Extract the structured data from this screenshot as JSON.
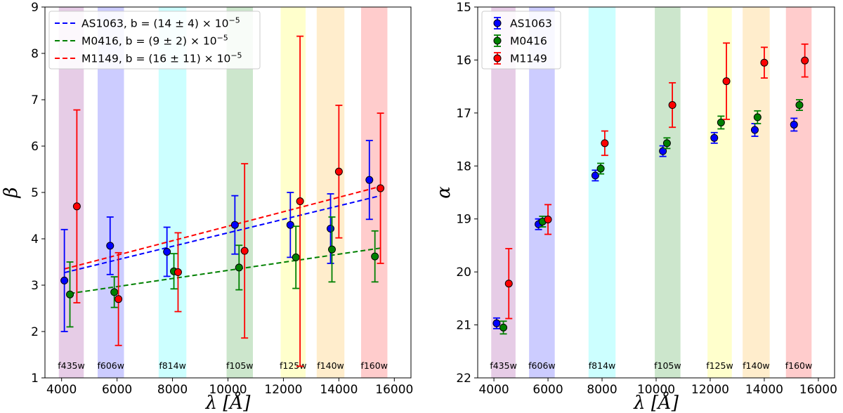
{
  "chart_data": [
    {
      "type": "scatter",
      "panel": "left",
      "xlabel": "λ [Å]",
      "ylabel": "β",
      "xlim": [
        3400,
        16600
      ],
      "ylim": [
        1,
        9
      ],
      "xticks": [
        4000,
        6000,
        8000,
        10000,
        12000,
        14000,
        16000
      ],
      "yticks": [
        1,
        2,
        3,
        4,
        5,
        6,
        7,
        8,
        9
      ],
      "y_inverted": false,
      "bands": [
        {
          "label": "f435w",
          "x0": 3900,
          "x1": 4800,
          "color": "#800080"
        },
        {
          "label": "f606w",
          "x0": 5300,
          "x1": 6250,
          "color": "#0000ff"
        },
        {
          "label": "f814w",
          "x0": 7500,
          "x1": 8500,
          "color": "#00ffff"
        },
        {
          "label": "f105w",
          "x0": 9950,
          "x1": 10900,
          "color": "#008000"
        },
        {
          "label": "f125w",
          "x0": 11900,
          "x1": 12800,
          "color": "#ffff00"
        },
        {
          "label": "f140w",
          "x0": 13200,
          "x1": 14200,
          "color": "#ffa500"
        },
        {
          "label": "f160w",
          "x0": 14800,
          "x1": 15750,
          "color": "#ff0000"
        }
      ],
      "series": [
        {
          "name": "AS1063",
          "legend": "AS1063, b = (14 ± 4) × 10⁻⁵",
          "color": "#0000ff",
          "x": [
            4100,
            5750,
            7800,
            10250,
            12250,
            13700,
            15100
          ],
          "y": [
            3.1,
            3.85,
            3.72,
            4.3,
            4.3,
            4.22,
            5.27
          ],
          "err": [
            1.1,
            0.62,
            0.53,
            0.63,
            0.7,
            0.75,
            0.85
          ],
          "fit": {
            "x": [
              4100,
              15500
            ],
            "y": [
              3.27,
              4.93
            ]
          }
        },
        {
          "name": "M0416",
          "legend": "M0416, b = (9 ± 2) × 10⁻⁵",
          "color": "#008000",
          "x": [
            4300,
            5900,
            8050,
            10400,
            12450,
            13750,
            15300
          ],
          "y": [
            2.8,
            2.85,
            3.3,
            3.38,
            3.6,
            3.77,
            3.62
          ],
          "err": [
            0.7,
            0.33,
            0.38,
            0.48,
            0.67,
            0.7,
            0.55
          ],
          "fit": {
            "x": [
              4300,
              15500
            ],
            "y": [
              2.82,
              3.8
            ]
          }
        },
        {
          "name": "M1149",
          "legend": "M1149, b = (16 ± 11) × 10⁻⁵",
          "color": "#ff0000",
          "x": [
            4550,
            6050,
            8200,
            10600,
            12600,
            14000,
            15500
          ],
          "y": [
            4.7,
            2.7,
            3.28,
            3.74,
            4.81,
            5.45,
            5.09
          ],
          "err": [
            2.08,
            1.0,
            0.85,
            1.88,
            3.56,
            1.43,
            1.62
          ],
          "fit": {
            "x": [
              4100,
              15500
            ],
            "y": [
              3.35,
              5.13
            ]
          }
        }
      ]
    },
    {
      "type": "scatter",
      "panel": "right",
      "xlabel": "λ [Å]",
      "ylabel": "α",
      "xlim": [
        3400,
        16600
      ],
      "ylim": [
        15,
        22
      ],
      "xticks": [
        4000,
        6000,
        8000,
        10000,
        12000,
        14000,
        16000
      ],
      "yticks": [
        15,
        16,
        17,
        18,
        19,
        20,
        21,
        22
      ],
      "y_inverted": true,
      "bands": [
        {
          "label": "f435w",
          "x0": 3900,
          "x1": 4800,
          "color": "#800080"
        },
        {
          "label": "f606w",
          "x0": 5300,
          "x1": 6250,
          "color": "#0000ff"
        },
        {
          "label": "f814w",
          "x0": 7500,
          "x1": 8500,
          "color": "#00ffff"
        },
        {
          "label": "f105w",
          "x0": 9950,
          "x1": 10900,
          "color": "#008000"
        },
        {
          "label": "f125w",
          "x0": 11900,
          "x1": 12800,
          "color": "#ffff00"
        },
        {
          "label": "f140w",
          "x0": 13200,
          "x1": 14200,
          "color": "#ffa500"
        },
        {
          "label": "f160w",
          "x0": 14800,
          "x1": 15750,
          "color": "#ff0000"
        }
      ],
      "series": [
        {
          "name": "AS1063",
          "legend": "AS1063",
          "color": "#0000ff",
          "x": [
            4100,
            5650,
            7750,
            10250,
            12150,
            13650,
            15100
          ],
          "y": [
            20.97,
            19.1,
            18.18,
            17.72,
            17.47,
            17.32,
            17.22
          ],
          "err": [
            0.1,
            0.1,
            0.1,
            0.1,
            0.1,
            0.12,
            0.12
          ],
          "fit": null
        },
        {
          "name": "M0416",
          "legend": "M0416",
          "color": "#008000",
          "x": [
            4350,
            5800,
            7950,
            10400,
            12400,
            13750,
            15300
          ],
          "y": [
            21.05,
            19.05,
            18.05,
            17.57,
            17.18,
            17.08,
            16.85
          ],
          "err": [
            0.12,
            0.1,
            0.1,
            0.1,
            0.12,
            0.12,
            0.1
          ],
          "fit": null
        },
        {
          "name": "M1149",
          "legend": "M1149",
          "color": "#ff0000",
          "x": [
            4550,
            6000,
            8100,
            10600,
            12600,
            14000,
            15500
          ],
          "y": [
            20.22,
            19.01,
            17.57,
            16.85,
            16.4,
            16.05,
            16.01
          ],
          "err": [
            0.66,
            0.28,
            0.23,
            0.42,
            0.72,
            0.29,
            0.31
          ],
          "fit": null
        }
      ]
    }
  ]
}
